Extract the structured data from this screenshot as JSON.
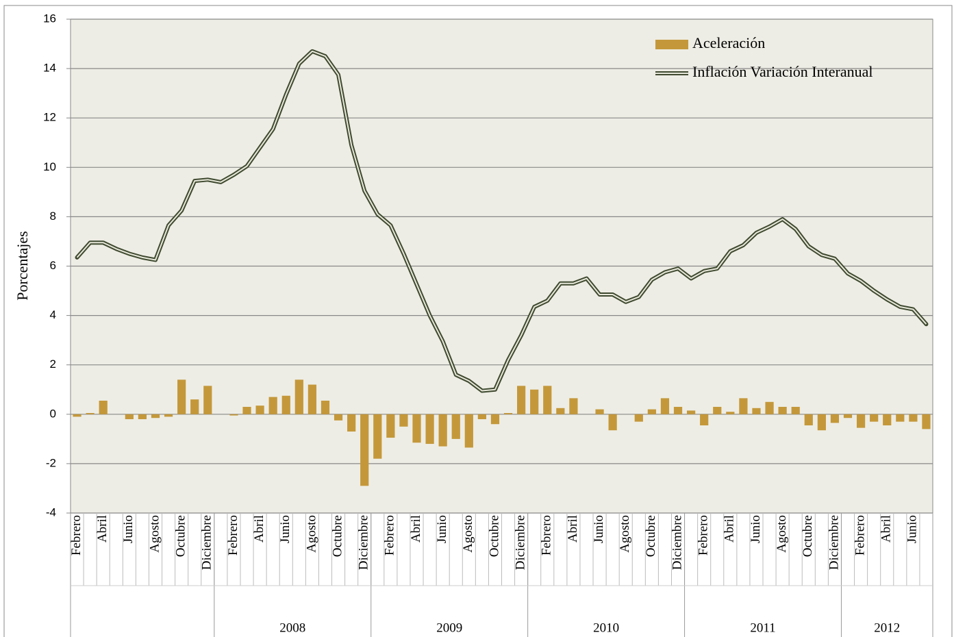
{
  "chart_data": {
    "type": "bar-line",
    "y_axis_label": "Porcentajes",
    "categories": [
      "Febrero",
      null,
      "Abril",
      null,
      "Junio",
      null,
      "Agosto",
      null,
      "Octubre",
      null,
      "Diciembre",
      null,
      "Febrero",
      null,
      "Abril",
      null,
      "Junio",
      null,
      "Agosto",
      null,
      "Octubre",
      null,
      "Diciembre",
      null,
      "Febrero",
      null,
      "Abril",
      null,
      "Junio",
      null,
      "Agosto",
      null,
      "Octubre",
      null,
      "Diciembre",
      null,
      "Febrero",
      null,
      "Abril",
      null,
      "Junio",
      null,
      "Agosto",
      null,
      "Octubre",
      null,
      "Diciembre",
      null,
      "Febrero",
      null,
      "Abril",
      null,
      "Junio",
      null,
      "Agosto",
      null,
      "Octubre",
      null,
      "Diciembre",
      null,
      "Febrero",
      null,
      "Abril",
      null,
      "Junio",
      null
    ],
    "year_groups": [
      {
        "label": null,
        "count": 11
      },
      {
        "label": "2008",
        "count": 12
      },
      {
        "label": "2009",
        "count": 12
      },
      {
        "label": "2010",
        "count": 12
      },
      {
        "label": "2011",
        "count": 12
      },
      {
        "label": "2012",
        "count": 7
      }
    ],
    "series": [
      {
        "name": "Aceleración",
        "kind": "bar",
        "color": "#c4983a",
        "values": [
          -0.1,
          0.05,
          0.55,
          0,
          -0.2,
          -0.2,
          -0.15,
          -0.1,
          1.4,
          0.6,
          1.15,
          0,
          -0.05,
          0.3,
          0.35,
          0.7,
          0.75,
          1.4,
          1.2,
          0.55,
          -0.25,
          -0.7,
          -2.9,
          -1.8,
          -0.95,
          -0.5,
          -1.15,
          -1.2,
          -1.3,
          -1.0,
          -1.35,
          -0.2,
          -0.4,
          0.05,
          1.15,
          1.0,
          1.15,
          0.25,
          0.65,
          0,
          0.2,
          -0.65,
          0,
          -0.3,
          0.2,
          0.65,
          0.3,
          0.15,
          -0.45,
          0.3,
          0.1,
          0.65,
          0.25,
          0.5,
          0.3,
          0.3,
          -0.45,
          -0.65,
          -0.35,
          -0.15,
          -0.55,
          -0.3,
          -0.45,
          -0.3,
          -0.3,
          -0.6
        ]
      },
      {
        "name": "Inflación Variación Interanual",
        "kind": "line",
        "color": "#3f4a30",
        "values": [
          6.35,
          6.95,
          6.95,
          6.7,
          6.5,
          6.35,
          6.25,
          7.65,
          8.25,
          9.45,
          9.5,
          9.4,
          9.7,
          10.05,
          10.8,
          11.55,
          12.95,
          14.2,
          14.7,
          14.5,
          13.75,
          10.9,
          9.05,
          8.1,
          7.65,
          6.5,
          5.25,
          4.0,
          2.95,
          1.6,
          1.35,
          0.95,
          1.0,
          2.2,
          3.2,
          4.35,
          4.6,
          5.3,
          5.3,
          5.5,
          4.85,
          4.85,
          4.55,
          4.75,
          5.45,
          5.75,
          5.9,
          5.5,
          5.8,
          5.9,
          6.6,
          6.85,
          7.35,
          7.6,
          7.9,
          7.5,
          6.8,
          6.45,
          6.3,
          5.7,
          5.4,
          5.0,
          4.65,
          4.35,
          4.25,
          3.65
        ]
      }
    ],
    "ylim": [
      -4,
      16
    ],
    "yticks": [
      -4,
      -2,
      0,
      2,
      4,
      6,
      8,
      10,
      12,
      14,
      16
    ],
    "grid": true,
    "legend": "top-right"
  }
}
